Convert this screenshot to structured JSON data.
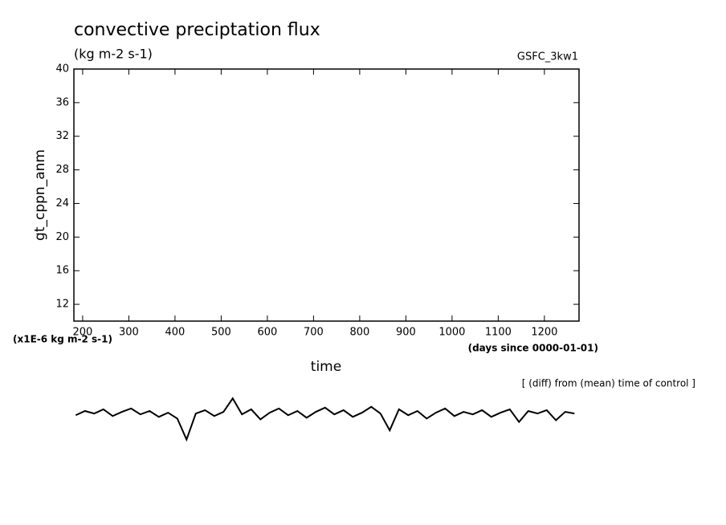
{
  "chart_data": {
    "type": "line",
    "title": "convective preciptation flux",
    "subtitle": "(kg m-2 s-1)",
    "run_label": "GSFC_3kw1",
    "y_label": "gt_cppn_anm",
    "y_units": "(x1E-6 kg m-2 s-1)",
    "x_units": "(days since 0000-01-01)",
    "x_label": "time",
    "annotation": "[ (diff) from (mean) time of control ]",
    "color": "#000000",
    "xlim": [
      181,
      1275
    ],
    "xticks": [
      200,
      300,
      400,
      500,
      600,
      700,
      800,
      900,
      1000,
      1100,
      1200
    ],
    "ylim": [
      10,
      40
    ],
    "yticks": [
      12,
      16,
      20,
      24,
      28,
      32,
      36,
      40
    ],
    "x": [
      185,
      205,
      225,
      245,
      265,
      285,
      305,
      325,
      345,
      365,
      385,
      405,
      425,
      445,
      465,
      485,
      505,
      525,
      545,
      565,
      585,
      605,
      625,
      645,
      665,
      685,
      705,
      725,
      745,
      765,
      785,
      805,
      825,
      845,
      865,
      885,
      905,
      925,
      945,
      965,
      985,
      1005,
      1025,
      1045,
      1065,
      1085,
      1105,
      1125,
      1145,
      1165,
      1185,
      1205,
      1225,
      1245,
      1265
    ],
    "values": [
      -1.2,
      -0.7,
      -1.0,
      -0.5,
      -1.3,
      -0.8,
      -0.4,
      -1.1,
      -0.7,
      -1.4,
      -0.9,
      -1.6,
      -4.1,
      -1.0,
      -0.6,
      -1.3,
      -0.8,
      0.8,
      -1.1,
      -0.5,
      -1.7,
      -0.9,
      -0.4,
      -1.2,
      -0.7,
      -1.5,
      -0.8,
      -0.3,
      -1.1,
      -0.6,
      -1.4,
      -0.9,
      -0.2,
      -1.0,
      -3.0,
      -0.5,
      -1.2,
      -0.7,
      -1.6,
      -0.9,
      -0.4,
      -1.3,
      -0.8,
      -1.1,
      -0.6,
      -1.4,
      -0.9,
      -0.5,
      -2.0,
      -0.7,
      -1.0,
      -0.6,
      -1.8,
      -0.8,
      -1.0
    ]
  }
}
